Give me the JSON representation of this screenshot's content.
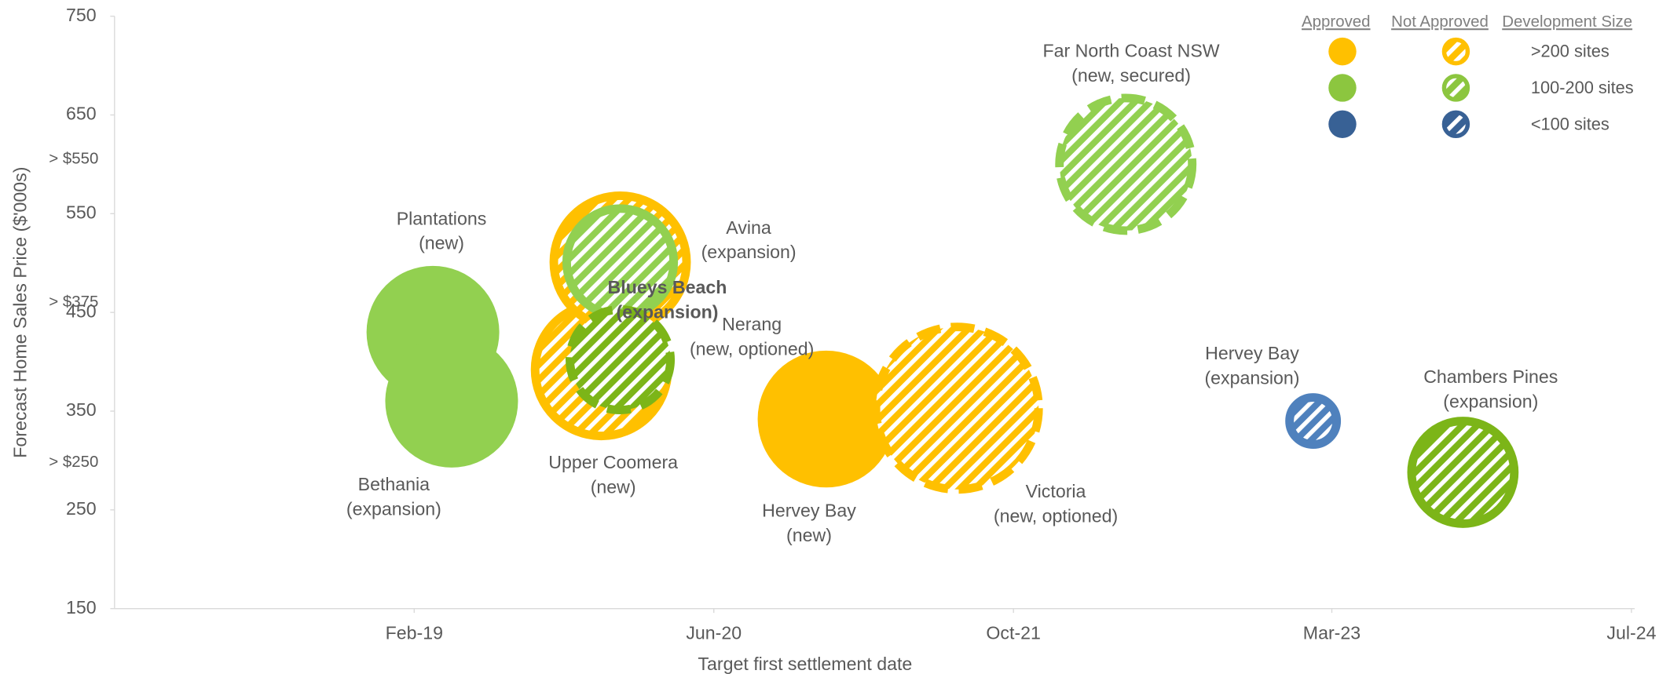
{
  "chart_data": {
    "type": "bubble",
    "x_label": "Target first settlement date",
    "y_label": "Forecast Home Sales Price ($'000s)",
    "xlim": [
      "2017-10",
      "2024-07"
    ],
    "xticks": [
      {
        "value": "2019-02",
        "label": "Feb-19"
      },
      {
        "value": "2020-06",
        "label": "Jun-20"
      },
      {
        "value": "2021-10",
        "label": "Oct-21"
      },
      {
        "value": "2023-03",
        "label": "Mar-23"
      },
      {
        "value": "2024-07",
        "label": "Jul-24"
      }
    ],
    "ylim": [
      150,
      750
    ],
    "yticks": [
      150,
      250,
      350,
      450,
      550,
      650,
      750
    ],
    "y_annotations": [
      {
        "value": 605,
        "label": "> $550"
      },
      {
        "value": 460,
        "label": "> $375"
      },
      {
        "value": 298,
        "label": "> $250"
      }
    ],
    "legend": {
      "headers": [
        "Approved",
        "Not Approved",
        "Development Size"
      ],
      "rows": [
        {
          "label": ">200 sites",
          "color": "#ffc000"
        },
        {
          "label": "100-200 sites",
          "color": "#8cc63f"
        },
        {
          "label": "<100  sites",
          "color": "#386195"
        }
      ]
    },
    "points": [
      {
        "label": [
          "Plantations",
          "(new)"
        ],
        "x": "2019-03",
        "y": 430,
        "size": 62,
        "color": "#92d050",
        "approved": true,
        "border": "none"
      },
      {
        "label": [
          "Bethania",
          "(expansion)"
        ],
        "x": "2019-04",
        "y": 360,
        "size": 62,
        "color": "#92d050",
        "approved": true,
        "border": "none"
      },
      {
        "label": [
          "Upper Coomera",
          "(new)"
        ],
        "x": "2019-12",
        "y": 392,
        "size": 62,
        "color": "#ffc000",
        "approved": false,
        "border": "solid"
      },
      {
        "label": [
          "Avina",
          "(expansion)"
        ],
        "x": "2020-01",
        "y": 501,
        "size": 62,
        "color": "#ffc000",
        "approved": false,
        "border": "solid"
      },
      {
        "label": [
          "Blueys Beach",
          "(expansion)"
        ],
        "x": "2020-01",
        "y": 501,
        "size": 50,
        "color": "#92d050",
        "approved": false,
        "border": "solid",
        "bold": true
      },
      {
        "label": [
          "Nerang",
          "(new, optioned)"
        ],
        "x": "2020-01",
        "y": 402,
        "size": 47,
        "color": "#7cb518",
        "approved": false,
        "border": "dashed"
      },
      {
        "label": [
          "Hervey Bay",
          "(new)"
        ],
        "x": "2020-12",
        "y": 342,
        "size": 64,
        "color": "#ffc000",
        "approved": true,
        "border": "none"
      },
      {
        "label": [
          "Victoria",
          "(new, optioned)"
        ],
        "x": "2021-07",
        "y": 353,
        "size": 76,
        "color": "#ffc000",
        "approved": false,
        "border": "dashed"
      },
      {
        "label": [
          "Far North Coast NSW",
          "(new, secured)"
        ],
        "x": "2022-04",
        "y": 600,
        "size": 62,
        "color": "#92d050",
        "approved": false,
        "border": "dashed"
      },
      {
        "label": [
          "Hervey Bay",
          "(expansion)"
        ],
        "x": "2023-02",
        "y": 340,
        "size": 22,
        "color": "#4f81bd",
        "approved": false,
        "border": "solid"
      },
      {
        "label": [
          "Chambers Pines",
          "(expansion)"
        ],
        "x": "2023-10",
        "y": 288,
        "size": 48,
        "color": "#7cb518",
        "approved": false,
        "border": "solid"
      }
    ]
  }
}
